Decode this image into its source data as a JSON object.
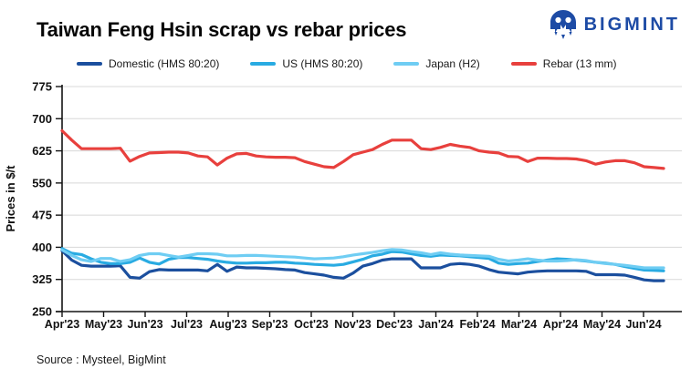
{
  "logo": {
    "text": "BIGMINT",
    "color": "#1d4ba5"
  },
  "footer": {
    "source": "Source : Mysteel, BigMint"
  },
  "chart_data": {
    "type": "line",
    "title": "Taiwan Feng Hsin scrap vs rebar prices",
    "ylabel": "Prices in $/t",
    "xlabel": "",
    "ylim": [
      250,
      775
    ],
    "yticks": [
      250,
      325,
      400,
      475,
      550,
      625,
      700,
      775
    ],
    "grid": "horizontal",
    "legend_position": "top",
    "x_tick_labels": [
      "Apr'23",
      "May'23",
      "Jun'23",
      "Jul'23",
      "Aug'23",
      "Sep'23",
      "Oct'23",
      "Nov'23",
      "Dec'23",
      "Jan'24",
      "Feb'24",
      "Mar'24",
      "Apr'24",
      "May'24",
      "Jun'24"
    ],
    "x_unit": "weekly observations, Apr 2023 - mid Jun 2024",
    "series": [
      {
        "name": "Domestic (HMS 80:20)",
        "color": "#1b4f9e",
        "values": [
          392,
          370,
          358,
          356,
          356,
          356,
          357,
          330,
          328,
          343,
          348,
          347,
          347,
          347,
          347,
          345,
          360,
          344,
          354,
          352,
          352,
          351,
          350,
          348,
          347,
          341,
          338,
          335,
          330,
          328,
          340,
          356,
          362,
          370,
          373,
          373,
          373,
          352,
          352,
          352,
          360,
          362,
          360,
          356,
          348,
          342,
          340,
          338,
          342,
          344,
          345,
          345,
          345,
          345,
          344,
          336,
          336,
          336,
          335,
          330,
          324,
          322,
          322
        ]
      },
      {
        "name": "US (HMS 80:20)",
        "color": "#29abe2",
        "values": [
          397,
          386,
          383,
          373,
          365,
          362,
          362,
          365,
          375,
          365,
          361,
          372,
          376,
          376,
          374,
          372,
          368,
          365,
          363,
          363,
          364,
          364,
          365,
          365,
          363,
          362,
          360,
          359,
          358,
          360,
          366,
          372,
          380,
          384,
          390,
          389,
          385,
          381,
          379,
          382,
          381,
          380,
          378,
          376,
          374,
          363,
          360,
          362,
          363,
          367,
          370,
          373,
          372,
          370,
          368,
          365,
          363,
          360,
          355,
          351,
          347,
          346,
          345
        ]
      },
      {
        "name": "Japan (H2)",
        "color": "#6fcdf3",
        "values": [
          394,
          381,
          371,
          367,
          374,
          374,
          367,
          371,
          381,
          385,
          385,
          381,
          377,
          381,
          385,
          385,
          384,
          380,
          380,
          381,
          381,
          380,
          379,
          378,
          377,
          375,
          373,
          374,
          375,
          378,
          382,
          385,
          388,
          392,
          395,
          394,
          390,
          387,
          383,
          387,
          384,
          382,
          381,
          380,
          379,
          372,
          368,
          370,
          373,
          370,
          368,
          368,
          369,
          371,
          369,
          365,
          362,
          360,
          358,
          355,
          352,
          352,
          352
        ]
      },
      {
        "name": "Rebar (13 mm)",
        "color": "#e8403d",
        "values": [
          672,
          650,
          630,
          630,
          630,
          630,
          631,
          601,
          612,
          620,
          621,
          622,
          622,
          620,
          613,
          611,
          592,
          608,
          618,
          619,
          613,
          611,
          610,
          610,
          609,
          600,
          594,
          588,
          586,
          600,
          616,
          622,
          628,
          640,
          650,
          650,
          650,
          630,
          628,
          633,
          640,
          636,
          633,
          625,
          622,
          620,
          612,
          611,
          600,
          608,
          608,
          607,
          607,
          606,
          602,
          594,
          599,
          602,
          602,
          597,
          588,
          586,
          584
        ]
      }
    ]
  }
}
